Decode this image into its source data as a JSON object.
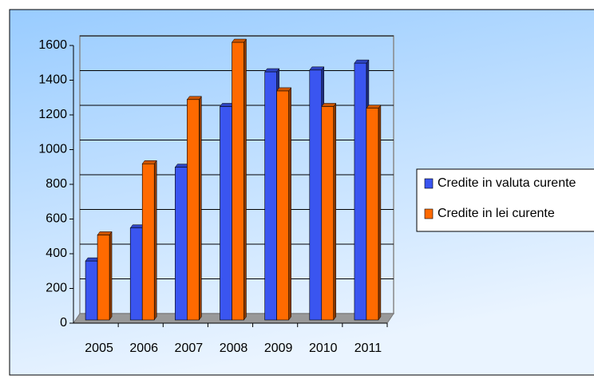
{
  "chart_data": {
    "type": "bar",
    "categories": [
      "2005",
      "2006",
      "2007",
      "2008",
      "2009",
      "2010",
      "2011"
    ],
    "series": [
      {
        "name": "Credite in valuta curente",
        "color": "#3a55f0",
        "values": [
          340,
          530,
          880,
          1230,
          1430,
          1440,
          1480
        ]
      },
      {
        "name": "Credite in lei curente",
        "color": "#ff6a00",
        "values": [
          490,
          900,
          1270,
          1600,
          1320,
          1230,
          1220
        ]
      }
    ],
    "ylim": [
      0,
      1600
    ],
    "yticks": [
      0,
      200,
      400,
      600,
      800,
      1000,
      1200,
      1400,
      1600
    ],
    "grid": true,
    "legend": "right"
  }
}
